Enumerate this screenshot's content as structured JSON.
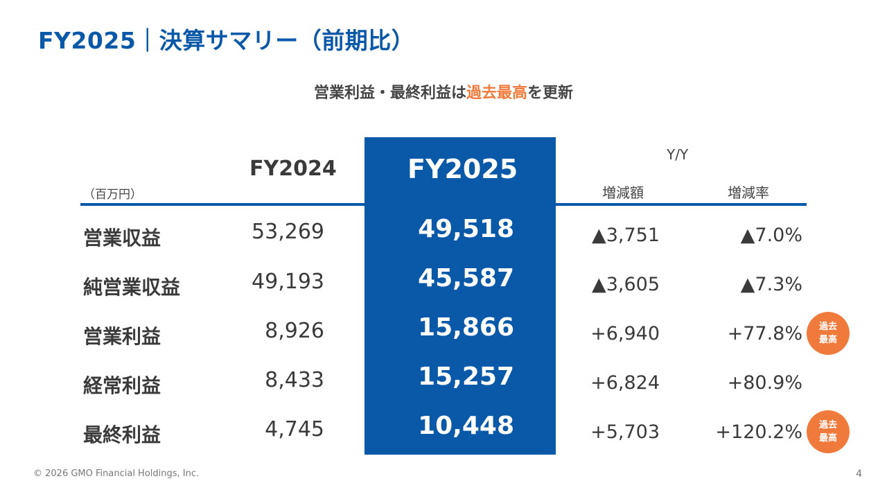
{
  "title": "FY2025｜決算サマリー（前期比）",
  "subtitle": {
    "prefix": "営業利益・最終利益は",
    "highlight": "過去最高",
    "suffix": "を更新"
  },
  "table": {
    "unit": "（百万円）",
    "col_prev": "FY2024",
    "col_curr": "FY2025",
    "yy_label": "Y/Y",
    "col_diff": "増減額",
    "col_rate": "増減率",
    "rows": [
      {
        "label": "営業収益",
        "prev": "53,269",
        "curr": "49,518",
        "diff": "▲3,751",
        "rate": "▲7.0%",
        "badge": ""
      },
      {
        "label": "純営業収益",
        "prev": "49,193",
        "curr": "45,587",
        "diff": "▲3,605",
        "rate": "▲7.3%",
        "badge": ""
      },
      {
        "label": "営業利益",
        "prev": "8,926",
        "curr": "15,866",
        "diff": "+6,940",
        "rate": "+77.8%",
        "badge": "過去最高"
      },
      {
        "label": "経常利益",
        "prev": "8,433",
        "curr": "15,257",
        "diff": "+6,824",
        "rate": "+80.9%",
        "badge": ""
      },
      {
        "label": "最終利益",
        "prev": "4,745",
        "curr": "10,448",
        "diff": "+5,703",
        "rate": "+120.2%",
        "badge": "過去最高"
      }
    ],
    "badge_line1": "過去",
    "badge_line2": "最高"
  },
  "footer": "© 2026 GMO Financial Holdings, Inc.",
  "page_number": "4",
  "colors": {
    "brand_blue": "#0a58a8",
    "accent_orange": "#f07a3c"
  }
}
